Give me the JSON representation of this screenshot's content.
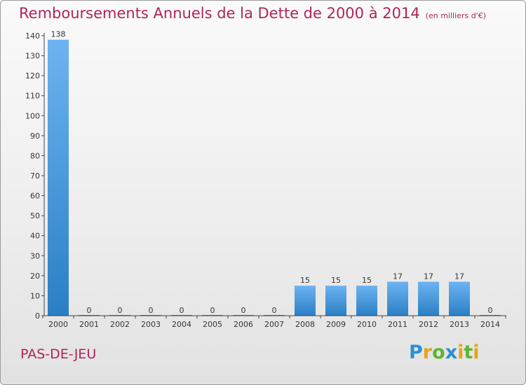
{
  "title": "Remboursements Annuels de la Dette de 2000 à 2014",
  "unit_note": "(en milliers d'€)",
  "commune": "PAS-DE-JEU",
  "logo": {
    "letters": [
      "P",
      "r",
      "o",
      "x",
      "i",
      "t",
      "i"
    ],
    "colors": [
      "#2a8fd6",
      "#e8a317",
      "#5cb531",
      "#2a8fd6",
      "#e8a317",
      "#5cb531",
      "#e8a317"
    ]
  },
  "colors": {
    "bar_top": "#6db3f2",
    "bar_bottom": "#2a7fc4",
    "title": "#b0245a"
  },
  "chart_data": {
    "type": "bar",
    "title": "Remboursements Annuels de la Dette de 2000 à 2014",
    "categories": [
      "2000",
      "2001",
      "2002",
      "2003",
      "2004",
      "2005",
      "2006",
      "2007",
      "2008",
      "2009",
      "2010",
      "2011",
      "2012",
      "2013",
      "2014"
    ],
    "values": [
      138,
      0,
      0,
      0,
      0,
      0,
      0,
      0,
      15,
      15,
      15,
      17,
      17,
      17,
      0
    ],
    "data_labels": [
      "138",
      "0",
      "0",
      "0",
      "0",
      "0",
      "0",
      "0",
      "15",
      "15",
      "15",
      "17",
      "17",
      "17",
      "0"
    ],
    "ylim": [
      0,
      140
    ],
    "yticks": [
      0,
      10,
      20,
      30,
      40,
      50,
      60,
      70,
      80,
      90,
      100,
      110,
      120,
      130,
      140
    ],
    "grid": false,
    "legend": "none"
  }
}
